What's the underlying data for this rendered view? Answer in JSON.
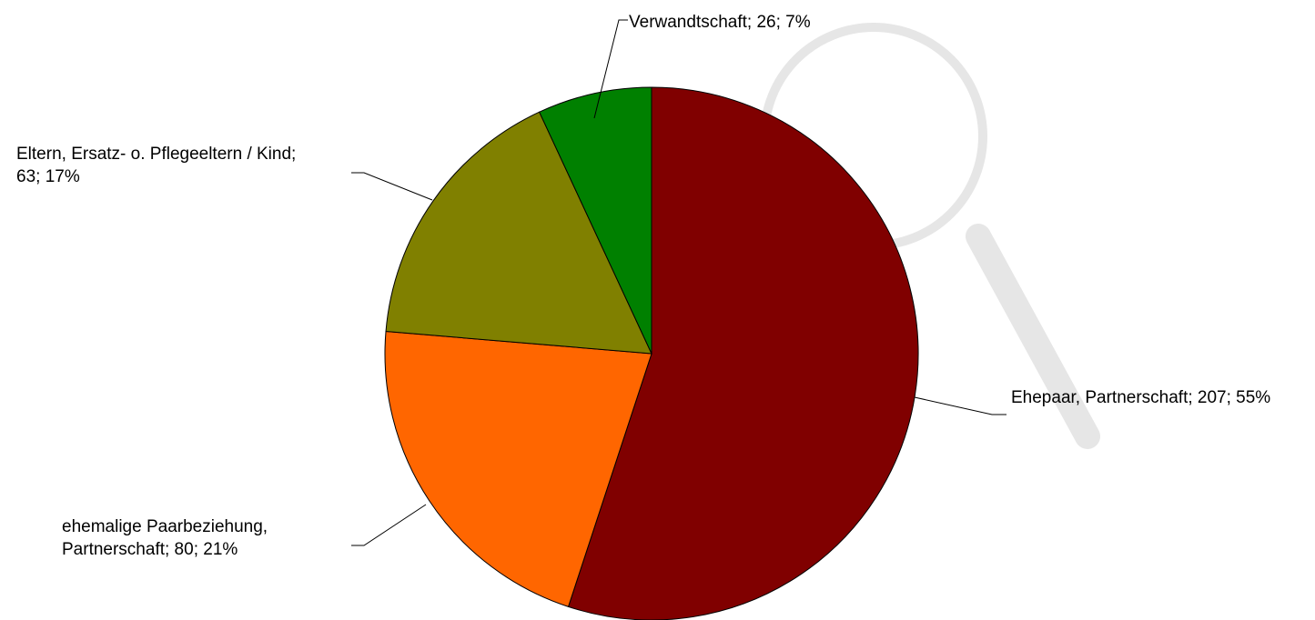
{
  "chart_data": {
    "type": "pie",
    "values": [
      207,
      80,
      63,
      26
    ],
    "value_labels": [
      "Ehepaar, Partnerschaft; 207; 55%",
      "ehemalige Paarbeziehung, Partnerschaft; 80; 21%",
      "Eltern, Ersatz- o. Pflegeeltern / Kind; 63; 17%",
      "Verwandtschaft; 26; 7%"
    ],
    "colors": [
      "#800000",
      "#ff6600",
      "#808000",
      "#008000"
    ]
  }
}
